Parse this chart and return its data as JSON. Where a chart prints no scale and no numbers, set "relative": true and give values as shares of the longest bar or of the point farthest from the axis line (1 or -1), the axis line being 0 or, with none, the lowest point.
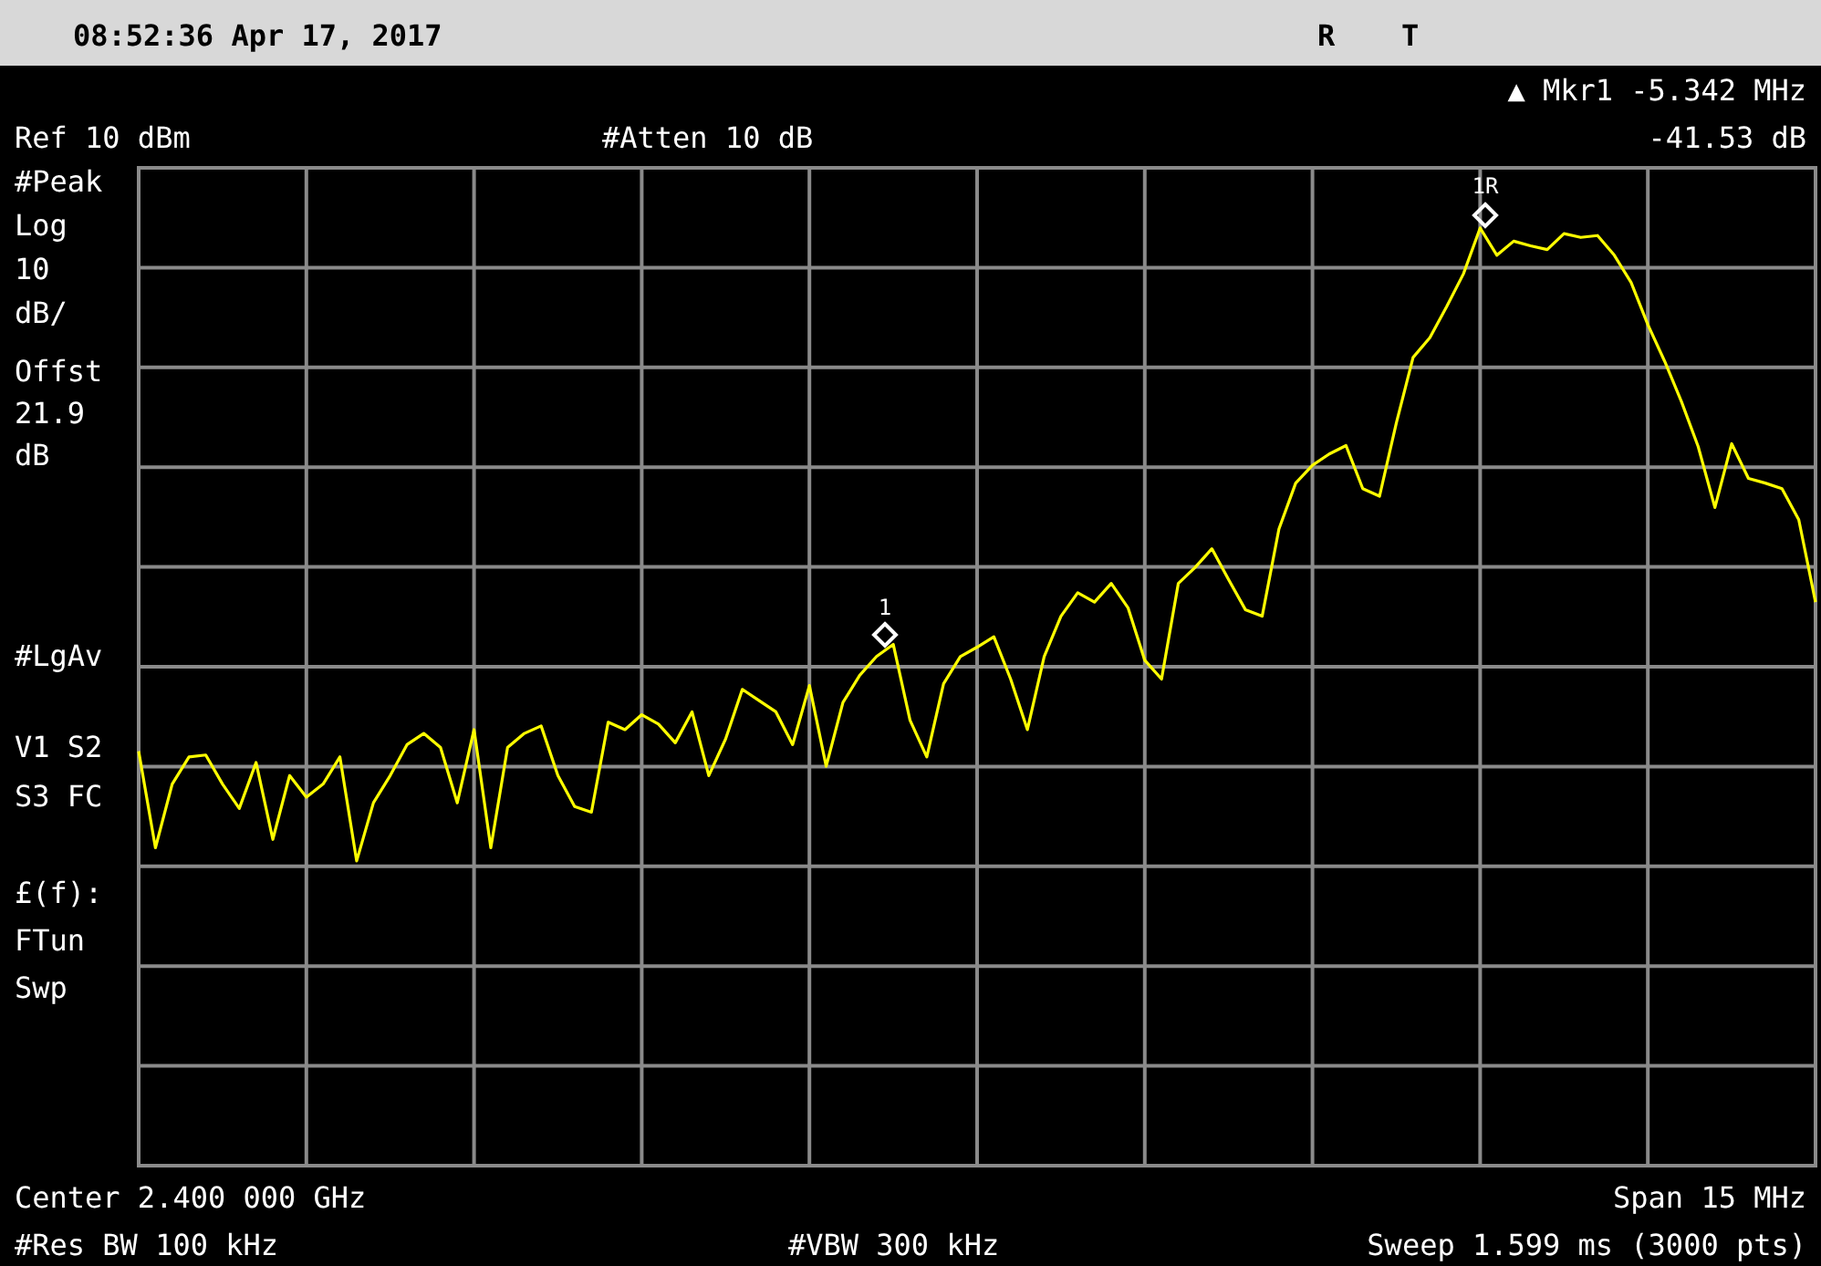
{
  "chart_data": {
    "type": "line",
    "relative": true,
    "categories": [
      null,
      null,
      null,
      null,
      null,
      null,
      null,
      null,
      null,
      null,
      null,
      null,
      null,
      null,
      null,
      null,
      null,
      null,
      null,
      null,
      null,
      null,
      null,
      null,
      null,
      null,
      null,
      null,
      null,
      null,
      null,
      null,
      null,
      null,
      null,
      null,
      null,
      null,
      null,
      null,
      null,
      null,
      null,
      null,
      null,
      null,
      null,
      null,
      null,
      null,
      null,
      null,
      null,
      null,
      null,
      null,
      null,
      null,
      null,
      null,
      null,
      null,
      null,
      null,
      null,
      null,
      null,
      null,
      null,
      null,
      null,
      null,
      null,
      null,
      null,
      null,
      null,
      null,
      null,
      null,
      null,
      null,
      null,
      null,
      null,
      null,
      null,
      null,
      null,
      null,
      null,
      null,
      null,
      null,
      null,
      null,
      null,
      null,
      null,
      null,
      null
    ],
    "grid": true,
    "marker": "none",
    "line_style": "solid",
    "series": [
      {
        "color": "#ffff00",
        "values": [
          0.442,
          0.339,
          0.407,
          0.436,
          0.438,
          0.407,
          0.381,
          0.43,
          0.348,
          0.416,
          0.393,
          0.407,
          0.436,
          0.325,
          0.387,
          0.416,
          0.449,
          0.461,
          0.446,
          0.387,
          0.465,
          0.339,
          0.446,
          0.461,
          0.469,
          0.416,
          0.383,
          0.377,
          0.473,
          0.465,
          0.481,
          0.471,
          0.451,
          0.484,
          0.416,
          0.455,
          0.508,
          0.496,
          0.484,
          0.449,
          0.512,
          0.426,
          0.494,
          0.523,
          0.543,
          0.556,
          0.475,
          0.436,
          0.514,
          0.543,
          0.553,
          0.564,
          0.519,
          0.465,
          0.543,
          0.586,
          0.611,
          0.601,
          0.621,
          0.595,
          0.539,
          0.519,
          0.621,
          0.638,
          0.658,
          0.625,
          0.593,
          0.586,
          0.679,
          0.728,
          0.747,
          0.759,
          0.768,
          0.722,
          0.714,
          0.792,
          0.862,
          0.883,
          0.916,
          0.951,
          1,
          0.971,
          0.986,
          0.981,
          0.977,
          0.994,
          0.99,
          0.992,
          0.971,
          0.942,
          0.897,
          0.858,
          0.815,
          0.767,
          0.702,
          0.77,
          0.733,
          0.728,
          0.722,
          0.689,
          0.601
        ]
      }
    ],
    "annotations": [
      "08:52:36  Apr 17, 2017",
      "R",
      "T",
      "▲ Mkr1  -5.342 MHz",
      "-41.53 dB",
      "Ref 10 dBm",
      "#Atten 10 dB",
      "#Peak",
      "Log",
      "10",
      "dB/",
      "Offst",
      "21.9",
      "dB",
      "#LgAv",
      "V1  S2",
      "S3  FC",
      "£(f):",
      "FTun",
      "Swp",
      "Center 2.400 000 GHz",
      "Span 15 MHz",
      "#Res BW 100 kHz",
      "#VBW 300 kHz",
      "Sweep 1.599 ms (3000 pts)",
      "1R",
      "1"
    ]
  }
}
